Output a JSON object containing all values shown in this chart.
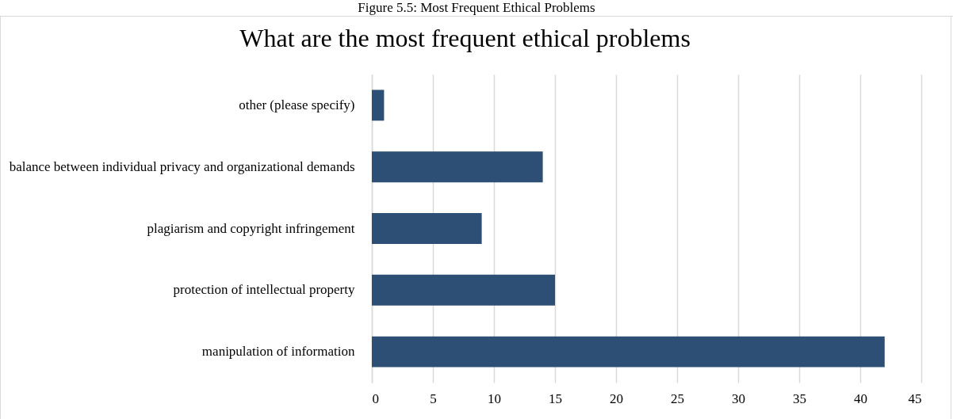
{
  "chart_data": {
    "type": "bar",
    "orientation": "horizontal",
    "title": "What are the most frequent ethical problems",
    "annotations": [
      "Figure 5.5: Most Frequent Ethical Problems"
    ],
    "categories": [
      "other (please specify)",
      "balance between individual privacy and organizational demands",
      "plagiarism and copyright infringement",
      "protection of intellectual property",
      "manipulation of information"
    ],
    "values": [
      1,
      14,
      9,
      15,
      42
    ],
    "color": "#2e4f75",
    "xlim": [
      0,
      45
    ],
    "xticks": [
      0,
      5,
      10,
      15,
      20,
      25,
      30,
      35,
      40,
      45
    ],
    "grid": "x"
  }
}
